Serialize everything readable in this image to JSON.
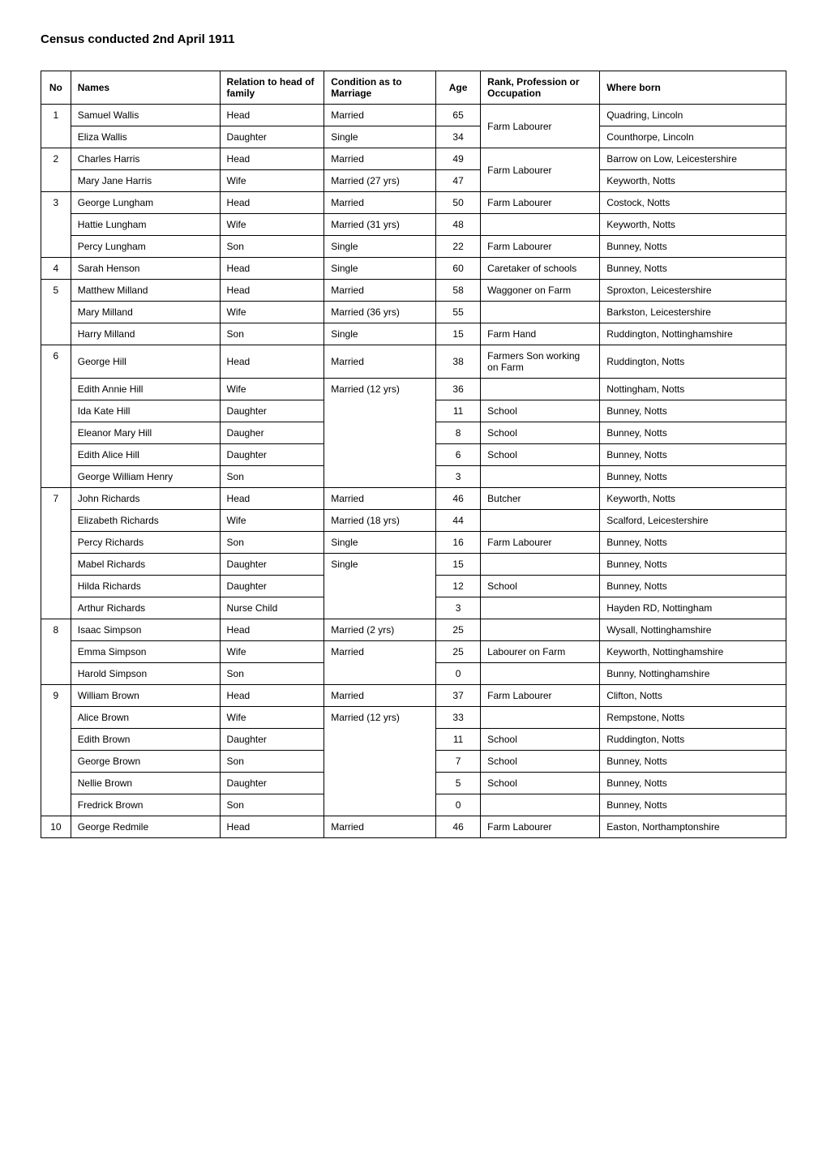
{
  "title": "Census conducted 2nd April 1911",
  "columns": [
    "No",
    "Names",
    "Relation to head of family",
    "Condition as to Marriage",
    "Age",
    "Rank, Profession or Occupation",
    "Where born"
  ],
  "households": [
    {
      "no": 1,
      "rows": [
        {
          "name": "Samuel Wallis",
          "rel": "Head",
          "cond": "Married",
          "age": 65,
          "rank": "Farm Labourer",
          "where": "Quadring, Lincoln",
          "rank_span": 2
        },
        {
          "name": "Eliza Wallis",
          "rel": "Daughter",
          "cond": "Single",
          "age": 34,
          "where": "Counthorpe, Lincoln"
        }
      ]
    },
    {
      "no": 2,
      "rows": [
        {
          "name": "Charles Harris",
          "rel": "Head",
          "cond": "Married",
          "age": 49,
          "rank": "Farm Labourer",
          "where": "Barrow on Low, Leicestershire",
          "rank_span": 2
        },
        {
          "name": "Mary Jane Harris",
          "rel": "Wife",
          "cond": "Married (27 yrs)",
          "age": 47,
          "where": "Keyworth, Notts"
        }
      ]
    },
    {
      "no": 3,
      "rows": [
        {
          "name": "George Lungham",
          "rel": "Head",
          "cond": "Married",
          "age": 50,
          "rank": "Farm Labourer",
          "where": "Costock, Notts"
        },
        {
          "name": "Hattie Lungham",
          "rel": "Wife",
          "cond": "Married (31 yrs)",
          "age": 48,
          "rank": "",
          "where": "Keyworth, Notts"
        },
        {
          "name": "Percy Lungham",
          "rel": "Son",
          "cond": "Single",
          "age": 22,
          "rank": "Farm Labourer",
          "where": "Bunney, Notts"
        }
      ]
    },
    {
      "no": 4,
      "rows": [
        {
          "name": "Sarah Henson",
          "rel": "Head",
          "cond": "Single",
          "age": 60,
          "rank": "Caretaker of schools",
          "where": "Bunney, Notts"
        }
      ]
    },
    {
      "no": 5,
      "rows": [
        {
          "name": "Matthew Milland",
          "rel": "Head",
          "cond": "Married",
          "age": 58,
          "rank": "Waggoner on Farm",
          "where": "Sproxton, Leicestershire"
        },
        {
          "name": "Mary Milland",
          "rel": "Wife",
          "cond": "Married (36 yrs)",
          "age": 55,
          "rank": "",
          "where": "Barkston, Leicestershire"
        },
        {
          "name": "Harry Milland",
          "rel": "Son",
          "cond": "Single",
          "age": 15,
          "rank": "Farm Hand",
          "where": "Ruddington, Nottinghamshire"
        }
      ]
    },
    {
      "no": 6,
      "rows": [
        {
          "name": "George Hill",
          "rel": "Head",
          "cond": "Married",
          "age": 38,
          "rank": "Farmers Son working on Farm",
          "where": "Ruddington, Notts"
        },
        {
          "name": "Edith Annie Hill",
          "rel": "Wife",
          "cond": "Married (12 yrs)",
          "age": 36,
          "rank": "",
          "where": "Nottingham, Notts",
          "cond_span": 5
        },
        {
          "name": "Ida Kate Hill",
          "rel": "Daughter",
          "age": 11,
          "rank": "School",
          "where": "Bunney, Notts"
        },
        {
          "name": "Eleanor Mary Hill",
          "rel": "Daugher",
          "age": 8,
          "rank": "School",
          "where": "Bunney, Notts"
        },
        {
          "name": "Edith Alice Hill",
          "rel": "Daughter",
          "age": 6,
          "rank": "School",
          "where": "Bunney, Notts"
        },
        {
          "name": "George William Henry",
          "rel": "Son",
          "age": 3,
          "rank": "",
          "where": "Bunney, Notts"
        }
      ]
    },
    {
      "no": 7,
      "rows": [
        {
          "name": "John Richards",
          "rel": "Head",
          "cond": "Married",
          "age": 46,
          "rank": "Butcher",
          "where": "Keyworth, Notts"
        },
        {
          "name": "Elizabeth Richards",
          "rel": "Wife",
          "cond": "Married (18 yrs)",
          "age": 44,
          "rank": "",
          "where": "Scalford, Leicestershire"
        },
        {
          "name": "Percy Richards",
          "rel": "Son",
          "cond": "Single",
          "age": 16,
          "rank": "Farm Labourer",
          "where": "Bunney, Notts"
        },
        {
          "name": "Mabel Richards",
          "rel": "Daughter",
          "cond": "Single",
          "age": 15,
          "rank": "",
          "where": "Bunney, Notts",
          "cond_span": 3
        },
        {
          "name": "Hilda Richards",
          "rel": "Daughter",
          "age": 12,
          "rank": "School",
          "where": "Bunney, Notts"
        },
        {
          "name": "Arthur Richards",
          "rel": "Nurse Child",
          "age": 3,
          "rank": "",
          "where": "Hayden RD, Nottingham"
        }
      ]
    },
    {
      "no": 8,
      "rows": [
        {
          "name": "Isaac Simpson",
          "rel": "Head",
          "cond": "Married (2 yrs)",
          "age": 25,
          "rank": "",
          "where": "Wysall, Nottinghamshire"
        },
        {
          "name": "Emma Simpson",
          "rel": "Wife",
          "cond": "Married",
          "age": 25,
          "rank": "Labourer on Farm",
          "where": "Keyworth, Nottinghamshire",
          "cond_span": 2
        },
        {
          "name": "Harold Simpson",
          "rel": "Son",
          "age": 0,
          "rank": "",
          "where": "Bunny, Nottinghamshire"
        }
      ]
    },
    {
      "no": 9,
      "rows": [
        {
          "name": "William Brown",
          "rel": "Head",
          "cond": "Married",
          "age": 37,
          "rank": "Farm Labourer",
          "where": "Clifton, Notts"
        },
        {
          "name": "Alice Brown",
          "rel": "Wife",
          "cond": "Married (12 yrs)",
          "age": 33,
          "rank": "",
          "where": "Rempstone, Notts",
          "cond_span": 5
        },
        {
          "name": "Edith Brown",
          "rel": "Daughter",
          "age": 11,
          "rank": "School",
          "where": "Ruddington, Notts"
        },
        {
          "name": "George Brown",
          "rel": "Son",
          "age": 7,
          "rank": "School",
          "where": "Bunney, Notts"
        },
        {
          "name": "Nellie Brown",
          "rel": "Daughter",
          "age": 5,
          "rank": "School",
          "where": "Bunney, Notts"
        },
        {
          "name": "Fredrick Brown",
          "rel": "Son",
          "age": 0,
          "rank": "",
          "where": "Bunney, Notts"
        }
      ]
    },
    {
      "no": 10,
      "rows": [
        {
          "name": "George Redmile",
          "rel": "Head",
          "cond": "Married",
          "age": 46,
          "rank": "Farm Labourer",
          "where": "Easton, Northamptonshire"
        }
      ]
    }
  ]
}
